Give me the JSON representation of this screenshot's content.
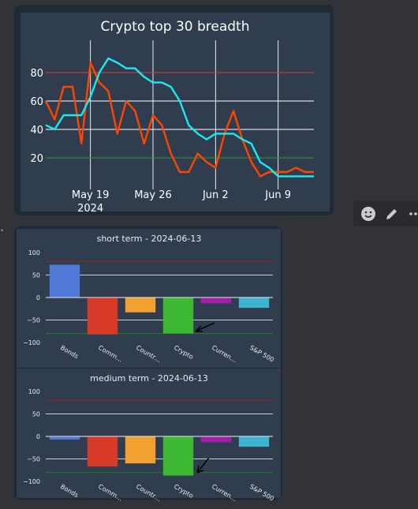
{
  "breadth_chart": {
    "title": "Crypto top 30 breadth",
    "x_tick_labels": [
      "May 19",
      "May 26",
      "Jun 2",
      "Jun 9"
    ],
    "x_tick_year": "2024",
    "y_tick_labels": [
      "20",
      "40",
      "60",
      "80"
    ],
    "colors": {
      "series_a": "#ff4500",
      "series_b": "#1de9f0",
      "upper_line": "#e53935",
      "lower_line": "#2e9a2e"
    }
  },
  "toolbar": {
    "icons": [
      "smiley-icon",
      "pencil-icon",
      "more-icon"
    ]
  },
  "short_term": {
    "title": "short term - 2024-06-13",
    "y_tick_labels": [
      "100",
      "50",
      "0",
      "−50",
      "−100"
    ],
    "x_labels": [
      "Bonds",
      "Comm…",
      "Countr…",
      "Crypto",
      "Curren…",
      "S&P 500"
    ]
  },
  "medium_term": {
    "title": "medium term - 2024-06-13",
    "y_tick_labels": [
      "100",
      "50",
      "0",
      "−50",
      "−100"
    ],
    "x_labels": [
      "Bonds",
      "Comm…",
      "Countr…",
      "Crypto",
      "Curren…",
      "S&P 500"
    ]
  },
  "chart_data": [
    {
      "type": "line",
      "title": "Crypto top 30 breadth",
      "x": [
        "2024-05-14",
        "2024-05-15",
        "2024-05-16",
        "2024-05-17",
        "2024-05-18",
        "2024-05-19",
        "2024-05-20",
        "2024-05-21",
        "2024-05-22",
        "2024-05-23",
        "2024-05-24",
        "2024-05-25",
        "2024-05-26",
        "2024-05-27",
        "2024-05-28",
        "2024-05-29",
        "2024-05-30",
        "2024-05-31",
        "2024-06-01",
        "2024-06-02",
        "2024-06-03",
        "2024-06-04",
        "2024-06-05",
        "2024-06-06",
        "2024-06-07",
        "2024-06-08",
        "2024-06-09",
        "2024-06-10",
        "2024-06-11",
        "2024-06-12",
        "2024-06-13"
      ],
      "series": [
        {
          "color": "#ff4500",
          "values": [
            60,
            47,
            70,
            70,
            30,
            87,
            73,
            67,
            37,
            60,
            53,
            30,
            50,
            43,
            23,
            10,
            10,
            23,
            17,
            13,
            37,
            53,
            33,
            17,
            7,
            10,
            10,
            10,
            13,
            10,
            10
          ]
        },
        {
          "color": "#1de9f0",
          "values": [
            43,
            40,
            50,
            50,
            50,
            63,
            80,
            90,
            87,
            83,
            83,
            77,
            73,
            73,
            70,
            60,
            43,
            37,
            33,
            37,
            37,
            37,
            33,
            30,
            17,
            13,
            7,
            7,
            7,
            7,
            7
          ]
        }
      ],
      "hlines": [
        {
          "y": 80,
          "color": "#e53935"
        },
        {
          "y": 20,
          "color": "#2e9a2e"
        }
      ],
      "ylim": [
        0,
        100
      ]
    },
    {
      "type": "bar",
      "title": "short term - 2024-06-13",
      "categories": [
        "Bonds",
        "Comm…",
        "Countr…",
        "Crypto",
        "Curren…",
        "S&P 500"
      ],
      "values": [
        73,
        -82,
        -33,
        -80,
        -13,
        -23
      ],
      "colors": [
        "#5078d6",
        "#d83a2a",
        "#f2a030",
        "#3cb832",
        "#a020a8",
        "#3cb4d0"
      ],
      "hlines": [
        {
          "y": 80,
          "color": "#8b2424"
        },
        {
          "y": -80,
          "color": "#1f7a1f"
        }
      ],
      "ylim": [
        -100,
        100
      ]
    },
    {
      "type": "bar",
      "title": "medium term - 2024-06-13",
      "categories": [
        "Bonds",
        "Comm…",
        "Countr…",
        "Crypto",
        "Curren…",
        "S&P 500"
      ],
      "values": [
        -7,
        -67,
        -60,
        -87,
        -13,
        -23
      ],
      "colors": [
        "#5078d6",
        "#d83a2a",
        "#f2a030",
        "#3cb832",
        "#a020a8",
        "#3cb4d0"
      ],
      "hlines": [
        {
          "y": 80,
          "color": "#8b2424"
        },
        {
          "y": -80,
          "color": "#1f7a1f"
        }
      ],
      "ylim": [
        -100,
        100
      ]
    }
  ]
}
